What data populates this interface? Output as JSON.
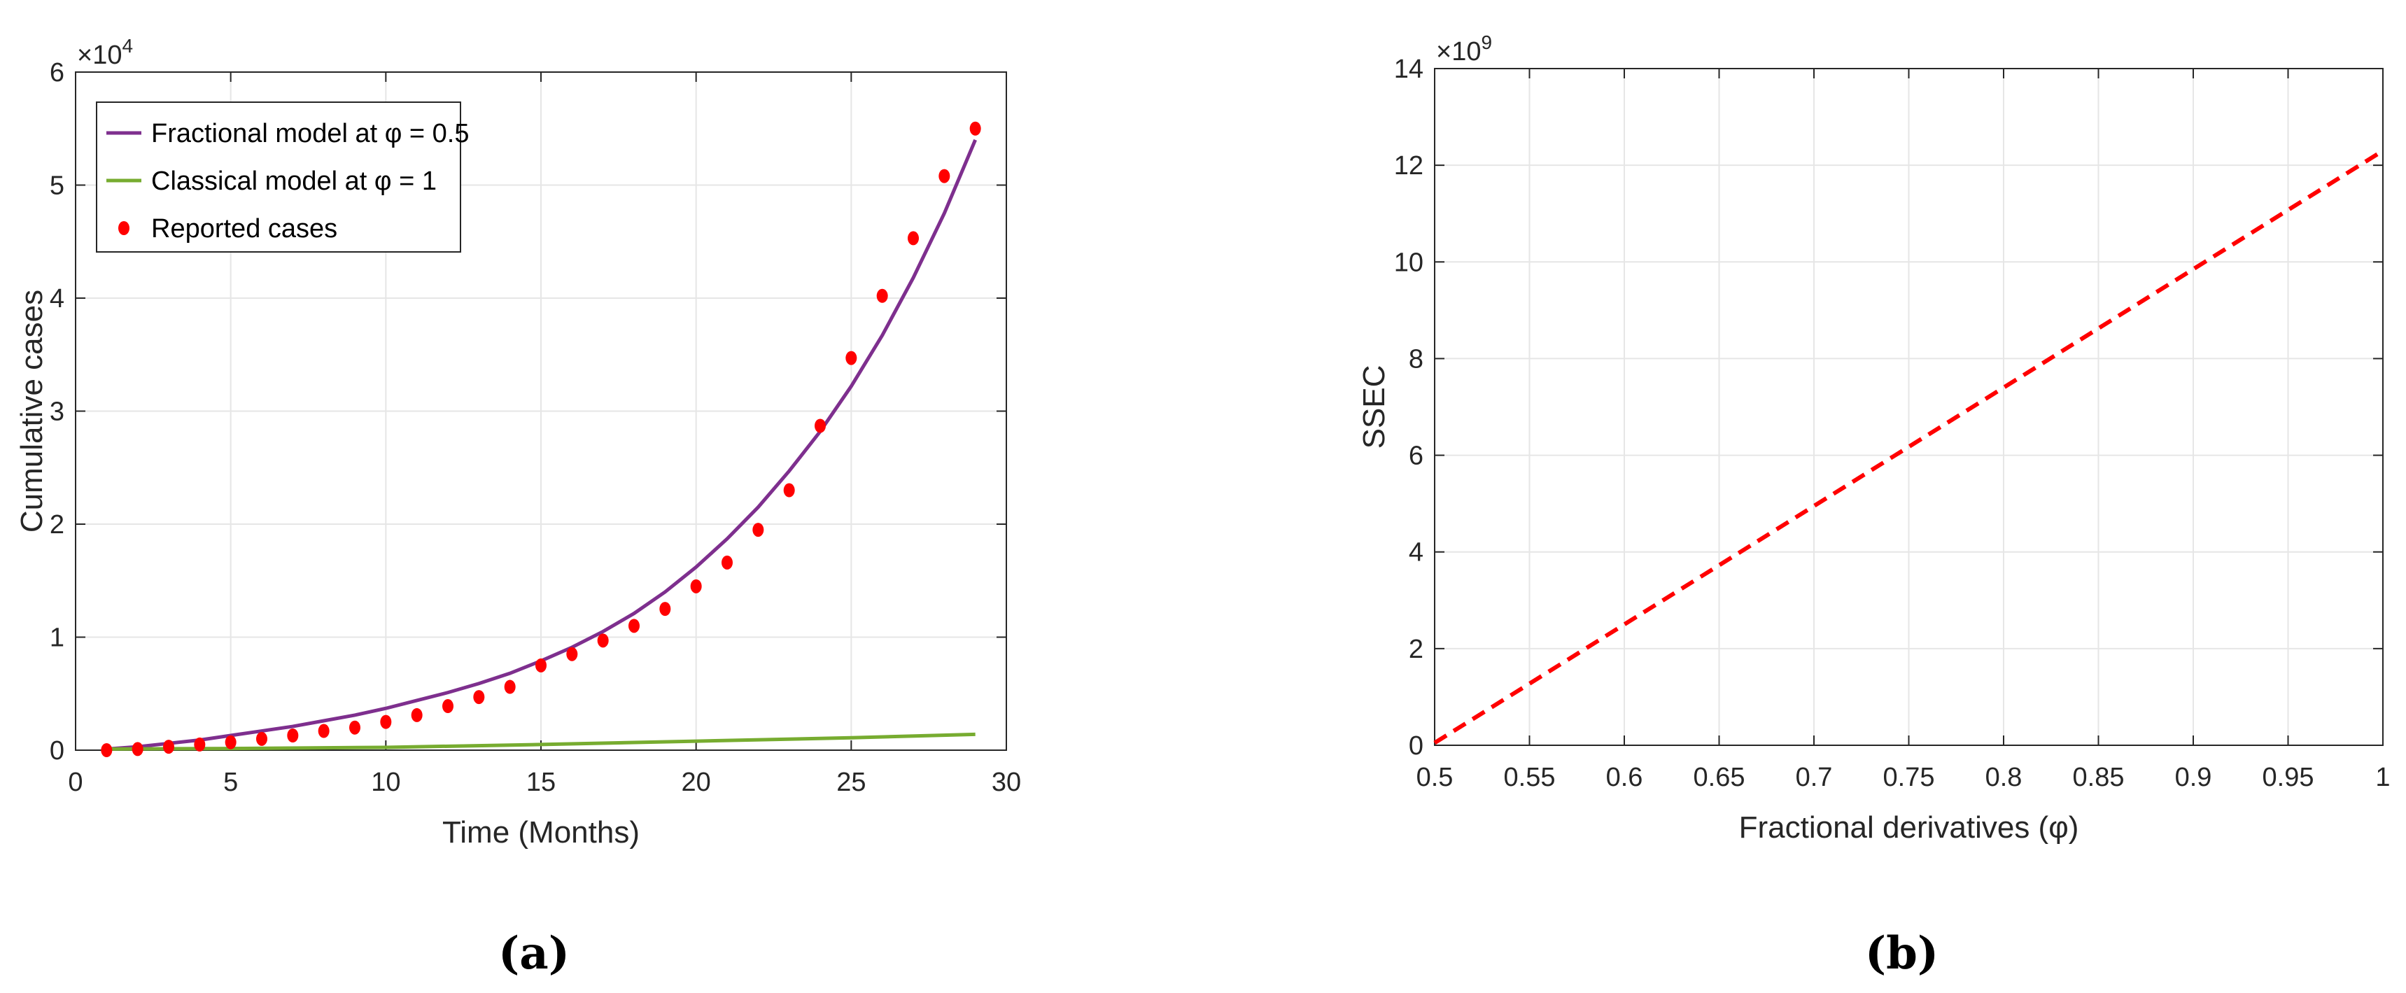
{
  "chart_data": [
    {
      "type": "line",
      "panel_label": "(a)",
      "title": "",
      "xlabel": "Time (Months)",
      "ylabel": "Cumulative cases",
      "y_multiplier": "×10",
      "y_multiplier_exp": "4",
      "xlim": [
        0,
        30
      ],
      "ylim": [
        0,
        6
      ],
      "xticks": [
        0,
        5,
        10,
        15,
        20,
        25,
        30
      ],
      "yticks": [
        0,
        1,
        2,
        3,
        4,
        5,
        6
      ],
      "grid": true,
      "legend_position": "top-left",
      "series": [
        {
          "name": "Fractional model at φ = 0.5",
          "kind": "line",
          "color": "#7e2f8e",
          "x": [
            1,
            2,
            3,
            4,
            5,
            6,
            7,
            8,
            9,
            10,
            11,
            12,
            13,
            14,
            15,
            16,
            17,
            18,
            19,
            20,
            21,
            22,
            23,
            24,
            25,
            26,
            27,
            28,
            29
          ],
          "y": [
            0.01,
            0.03,
            0.06,
            0.09,
            0.13,
            0.17,
            0.21,
            0.26,
            0.31,
            0.37,
            0.44,
            0.51,
            0.59,
            0.68,
            0.79,
            0.91,
            1.05,
            1.21,
            1.4,
            1.62,
            1.87,
            2.15,
            2.47,
            2.82,
            3.22,
            3.67,
            4.18,
            4.75,
            5.4
          ]
        },
        {
          "name": "Classical model at φ = 1",
          "kind": "line",
          "color": "#77ac30",
          "x": [
            1,
            5,
            10,
            15,
            20,
            25,
            29
          ],
          "y": [
            0.01,
            0.015,
            0.025,
            0.05,
            0.08,
            0.11,
            0.14
          ]
        },
        {
          "name": "Reported cases",
          "kind": "scatter",
          "color": "#ff0000",
          "x": [
            1,
            2,
            3,
            4,
            5,
            6,
            7,
            8,
            9,
            10,
            11,
            12,
            13,
            14,
            15,
            16,
            17,
            18,
            19,
            20,
            21,
            22,
            23,
            24,
            25,
            26,
            27,
            28,
            29
          ],
          "y": [
            0.0,
            0.01,
            0.03,
            0.05,
            0.07,
            0.1,
            0.13,
            0.17,
            0.2,
            0.25,
            0.31,
            0.39,
            0.47,
            0.56,
            0.75,
            0.85,
            0.97,
            1.1,
            1.25,
            1.45,
            1.66,
            1.95,
            2.3,
            2.87,
            3.47,
            4.02,
            4.53,
            5.08,
            5.5
          ]
        }
      ]
    },
    {
      "type": "line",
      "panel_label": "(b)",
      "title": "",
      "xlabel": "Fractional derivatives (φ)",
      "ylabel": "SSEC",
      "y_multiplier": "×10",
      "y_multiplier_exp": "9",
      "xlim": [
        0.5,
        1
      ],
      "ylim": [
        0,
        14
      ],
      "xticks": [
        0.5,
        0.55,
        0.6,
        0.65,
        0.7,
        0.75,
        0.8,
        0.85,
        0.9,
        0.95,
        1
      ],
      "xtick_labels": [
        "0.5",
        "0.55",
        "0.6",
        "0.65",
        "0.7",
        "0.75",
        "0.8",
        "0.85",
        "0.9",
        "0.95",
        "1"
      ],
      "yticks": [
        0,
        2,
        4,
        6,
        8,
        10,
        12,
        14
      ],
      "grid": true,
      "series": [
        {
          "kind": "dashed-line",
          "color": "#ff0000",
          "x": [
            0.5,
            1
          ],
          "y": [
            0.05,
            12.3
          ]
        }
      ]
    }
  ]
}
